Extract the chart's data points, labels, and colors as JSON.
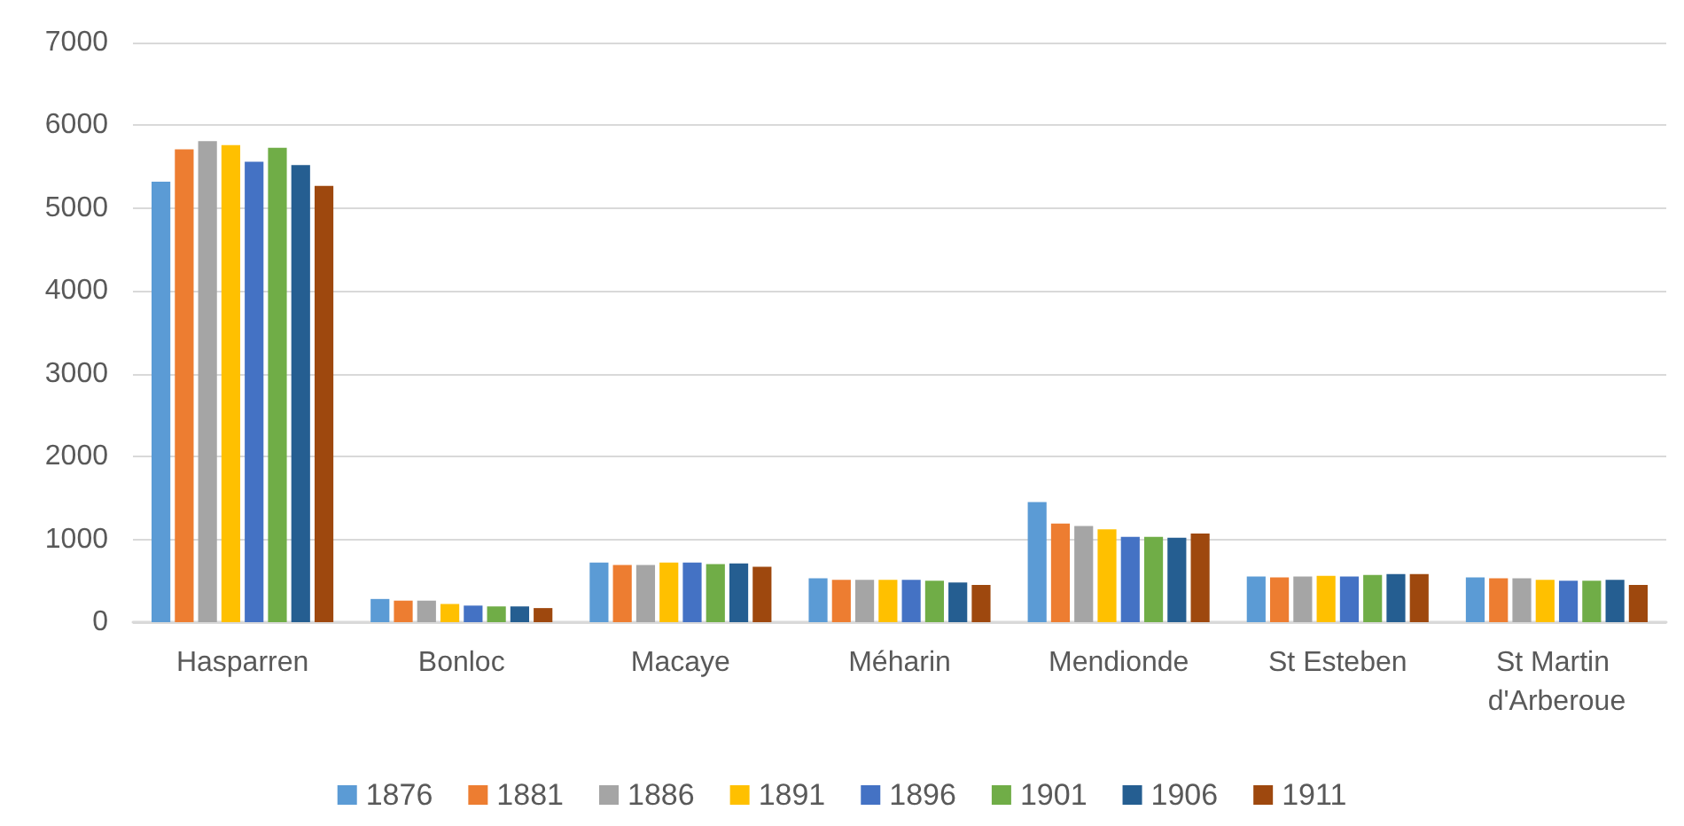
{
  "chart_data": {
    "type": "bar",
    "categories": [
      "Hasparren",
      "Bonloc",
      "Macaye",
      "Méharin",
      "Mendionde",
      "St Esteben",
      "St Martin d'Arberoue"
    ],
    "series": [
      {
        "name": "1876",
        "color": "#5b9bd5",
        "values": [
          5320,
          280,
          720,
          530,
          1450,
          550,
          540
        ]
      },
      {
        "name": "1881",
        "color": "#ed7d31",
        "values": [
          5710,
          260,
          690,
          510,
          1190,
          540,
          530
        ]
      },
      {
        "name": "1886",
        "color": "#a5a5a5",
        "values": [
          5810,
          260,
          690,
          510,
          1160,
          550,
          530
        ]
      },
      {
        "name": "1891",
        "color": "#ffc000",
        "values": [
          5760,
          220,
          720,
          510,
          1120,
          560,
          510
        ]
      },
      {
        "name": "1896",
        "color": "#4472c4",
        "values": [
          5560,
          200,
          720,
          510,
          1030,
          550,
          500
        ]
      },
      {
        "name": "1901",
        "color": "#70ad47",
        "values": [
          5730,
          190,
          700,
          500,
          1030,
          570,
          500
        ]
      },
      {
        "name": "1906",
        "color": "#255e91",
        "values": [
          5520,
          190,
          710,
          480,
          1020,
          580,
          510
        ]
      },
      {
        "name": "1911",
        "color": "#9e480e",
        "values": [
          5270,
          170,
          670,
          450,
          1070,
          580,
          450
        ]
      }
    ],
    "ylim": [
      0,
      7000
    ],
    "yticks": [
      0,
      1000,
      2000,
      3000,
      4000,
      5000,
      6000,
      7000
    ],
    "grid": "y",
    "legend": "bottom"
  }
}
